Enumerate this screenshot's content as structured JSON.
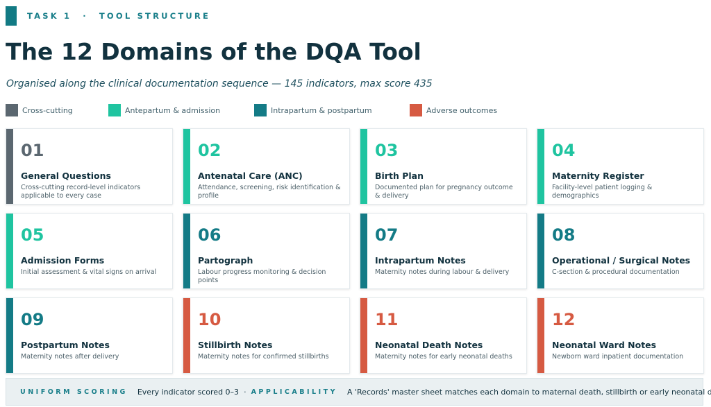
{
  "header": {
    "eyebrow_task": "TASK 1",
    "eyebrow_sep": "·",
    "eyebrow_topic": "TOOL STRUCTURE",
    "title": "The 12 Domains of the DQA Tool",
    "subtitle": "Organised along the clinical documentation sequence — 145 indicators, max score 435"
  },
  "colors": {
    "cross_cutting": "#5b6770",
    "antepartum": "#1fc4a0",
    "intrapartum": "#147b86",
    "adverse": "#d65a42"
  },
  "legend": [
    {
      "label": "Cross-cutting",
      "color": "#5b6770"
    },
    {
      "label": "Antepartum & admission",
      "color": "#1fc4a0"
    },
    {
      "label": "Intrapartum & postpartum",
      "color": "#147b86"
    },
    {
      "label": "Adverse outcomes",
      "color": "#d65a42"
    }
  ],
  "domains": [
    {
      "number": "01",
      "title": "General Questions",
      "description": "Cross-cutting record-level indicators applicable to every case",
      "category": "Cross-cutting",
      "color": "#5b6770"
    },
    {
      "number": "02",
      "title": "Antenatal Care (ANC)",
      "description": "Attendance, screening, risk identification & profile",
      "category": "Antepartum & admission",
      "color": "#1fc4a0"
    },
    {
      "number": "03",
      "title": "Birth Plan",
      "description": "Documented plan for pregnancy outcome & delivery",
      "category": "Antepartum & admission",
      "color": "#1fc4a0"
    },
    {
      "number": "04",
      "title": "Maternity Register",
      "description": "Facility-level patient logging & demographics",
      "category": "Antepartum & admission",
      "color": "#1fc4a0"
    },
    {
      "number": "05",
      "title": "Admission Forms",
      "description": "Initial assessment & vital signs on arrival",
      "category": "Antepartum & admission",
      "color": "#1fc4a0"
    },
    {
      "number": "06",
      "title": "Partograph",
      "description": "Labour progress monitoring & decision points",
      "category": "Intrapartum & postpartum",
      "color": "#147b86"
    },
    {
      "number": "07",
      "title": "Intrapartum Notes",
      "description": "Maternity notes during labour & delivery",
      "category": "Intrapartum & postpartum",
      "color": "#147b86"
    },
    {
      "number": "08",
      "title": "Operational / Surgical Notes",
      "description": "C-section & procedural documentation",
      "category": "Intrapartum & postpartum",
      "color": "#147b86"
    },
    {
      "number": "09",
      "title": "Postpartum Notes",
      "description": "Maternity notes after delivery",
      "category": "Intrapartum & postpartum",
      "color": "#147b86"
    },
    {
      "number": "10",
      "title": "Stillbirth Notes",
      "description": "Maternity notes for confirmed stillbirths",
      "category": "Adverse outcomes",
      "color": "#d65a42"
    },
    {
      "number": "11",
      "title": "Neonatal Death Notes",
      "description": "Maternity notes for early neonatal deaths",
      "category": "Adverse outcomes",
      "color": "#d65a42"
    },
    {
      "number": "12",
      "title": "Neonatal Ward Notes",
      "description": "Newborn ward inpatient documentation",
      "category": "Adverse outcomes",
      "color": "#d65a42"
    }
  ],
  "footer": {
    "key1": "UNIFORM SCORING",
    "val1": "Every indicator scored 0–3",
    "sep": "·",
    "key2": "APPLICABILITY",
    "val2": "A 'Records' master sheet matches each domain to maternal death, stillbirth or early neonatal death"
  }
}
